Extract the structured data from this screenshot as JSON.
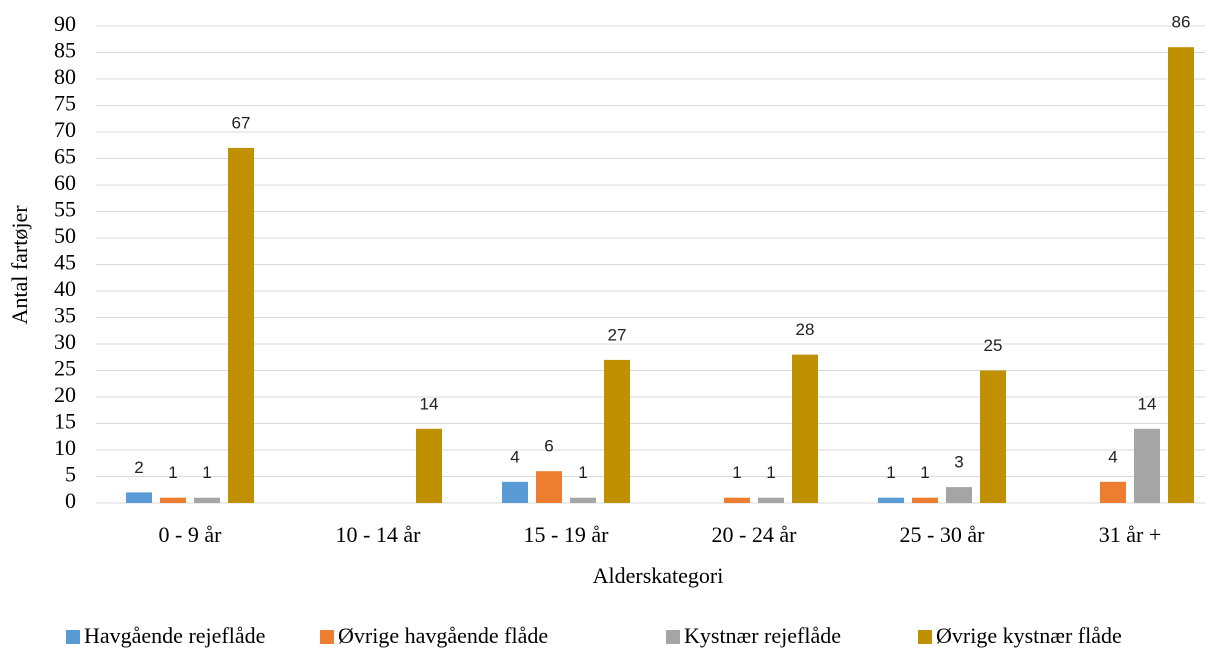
{
  "chart_data": {
    "type": "bar",
    "categories": [
      "0 - 9 år",
      "10 - 14 år",
      "15 - 19 år",
      "20 - 24 år",
      "25 - 30 år",
      "31 år +"
    ],
    "series": [
      {
        "name": "Havgående rejeflåde",
        "color": "#5b9bd5",
        "values": [
          2,
          null,
          4,
          null,
          1,
          null
        ]
      },
      {
        "name": "Øvrige havgående flåde",
        "color": "#ed7d31",
        "values": [
          1,
          null,
          6,
          1,
          1,
          4
        ]
      },
      {
        "name": "Kystnær rejeflåde",
        "color": "#a5a5a5",
        "values": [
          1,
          null,
          1,
          1,
          3,
          14
        ]
      },
      {
        "name": "Øvrige kystnær flåde",
        "color": "#bf9000",
        "values": [
          67,
          14,
          27,
          28,
          25,
          86
        ]
      }
    ],
    "x_label": "Alderskategori",
    "y_label": "Antal fartøjer",
    "ylim": [
      0,
      90
    ],
    "yticks": [
      0,
      5,
      10,
      15,
      20,
      25,
      30,
      35,
      40,
      45,
      50,
      55,
      60,
      65,
      70,
      75,
      80,
      85,
      90
    ],
    "grid": true,
    "legend": "bottom"
  }
}
